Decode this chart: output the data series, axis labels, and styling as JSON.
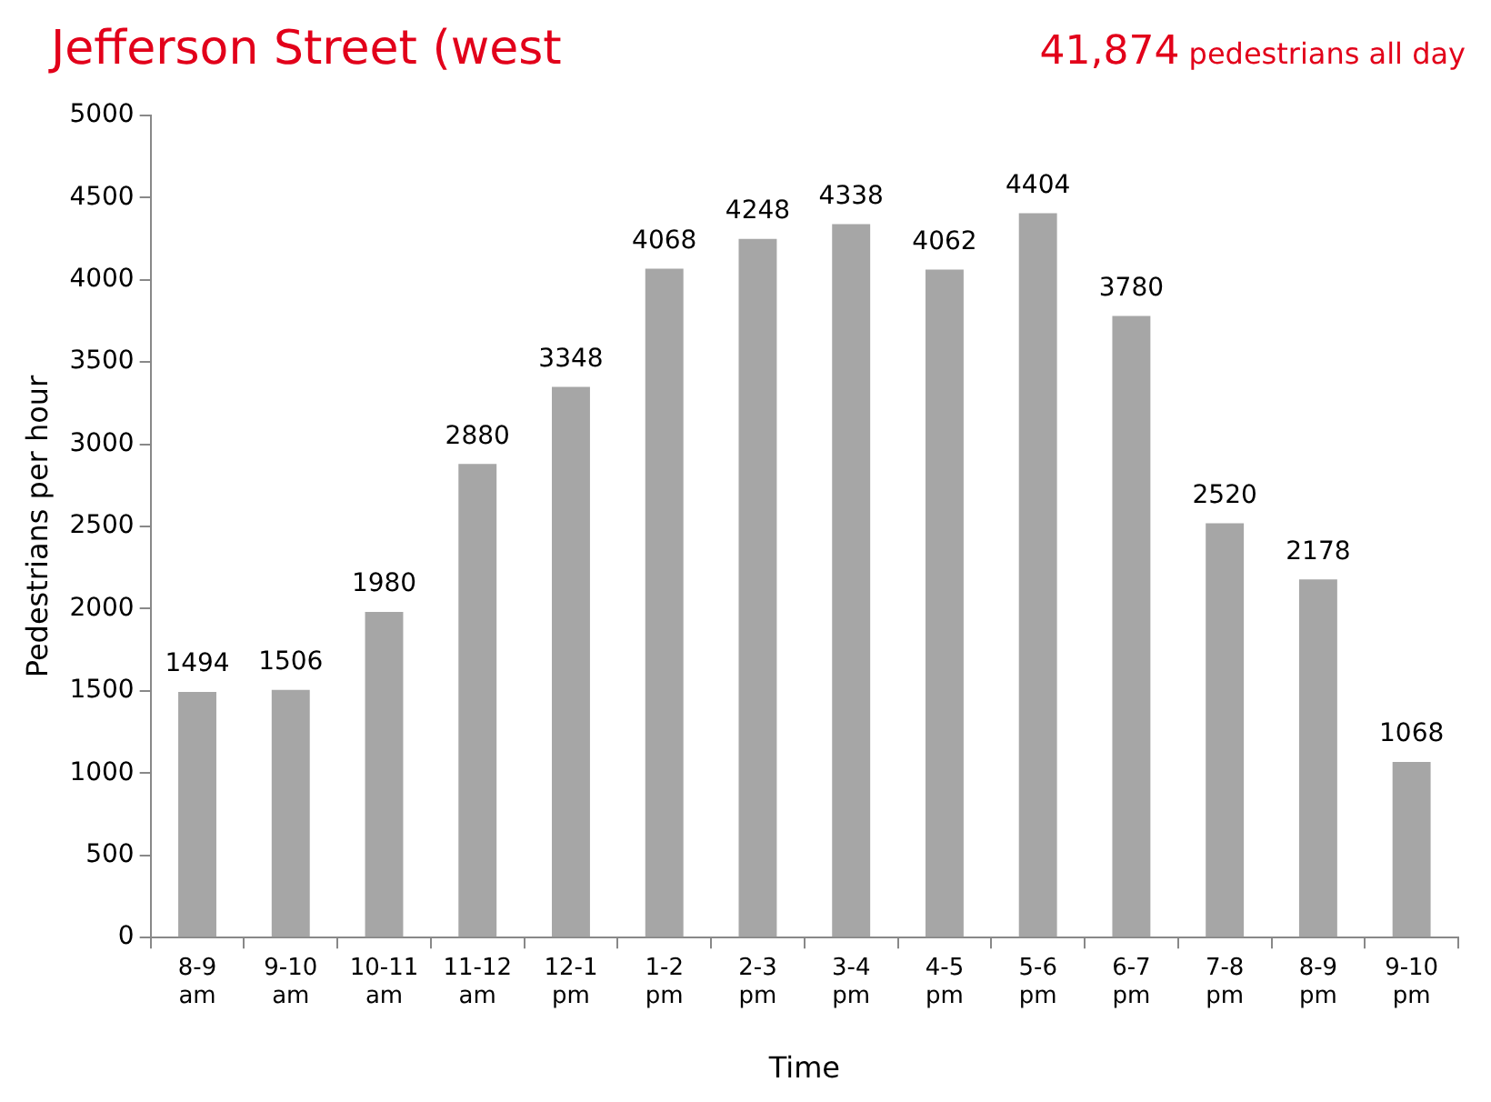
{
  "chart_data": {
    "type": "bar",
    "title": "Jefferson Street (west",
    "subtitle": "41,874 pedestrians all day",
    "xlabel": "Time",
    "ylabel": "Pedestrians per hour",
    "categories": [
      "8-9 am",
      "9-10 am",
      "10-11 am",
      "11-12 am",
      "12-1 pm",
      "1-2 pm",
      "2-3 pm",
      "3-4 pm",
      "4-5 pm",
      "5-6 pm",
      "6-7 pm",
      "7-8 pm",
      "8-9 pm",
      "9-10 pm"
    ],
    "values": [
      1494,
      1506,
      1980,
      2880,
      3348,
      4068,
      4248,
      4338,
      4062,
      4404,
      3780,
      2520,
      2178,
      1068
    ],
    "color": "#a6a6a6",
    "ylim": [
      0,
      5000
    ],
    "yticks": [
      0,
      500,
      1000,
      1500,
      2000,
      2500,
      3000,
      3500,
      4000,
      4500,
      5000
    ],
    "grid": false,
    "legend": false,
    "data_labels": true
  }
}
